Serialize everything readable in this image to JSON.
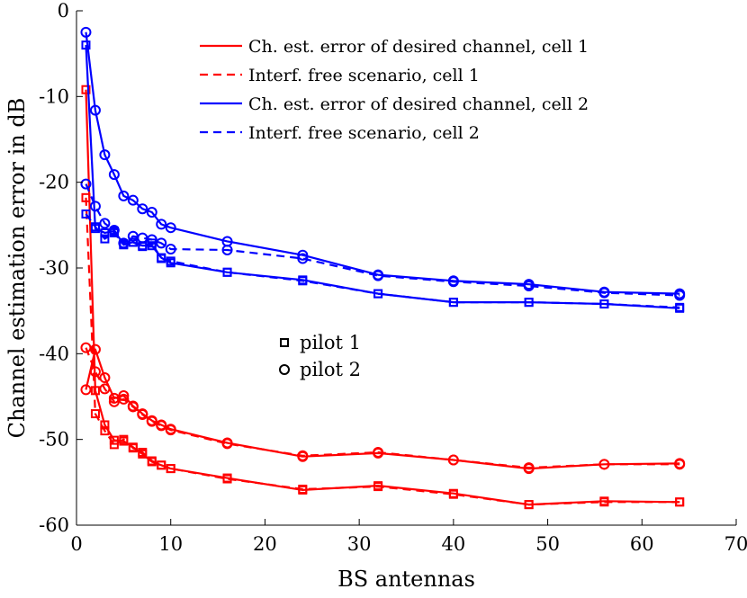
{
  "chart_data": {
    "type": "line",
    "xlabel": "BS antennas",
    "ylabel": "Channel estimation error in dB",
    "xlim": [
      0,
      70
    ],
    "ylim": [
      -60,
      0
    ],
    "xticks": [
      0,
      10,
      20,
      30,
      40,
      50,
      60,
      70
    ],
    "yticks": [
      0,
      -10,
      -20,
      -30,
      -40,
      -50,
      -60
    ],
    "xtick_labels": [
      "0",
      "10",
      "20",
      "30",
      "40",
      "50",
      "60",
      "70"
    ],
    "ytick_labels": [
      "0",
      "-10",
      "-20",
      "-30",
      "-40",
      "-50",
      "-60"
    ],
    "legend": {
      "position": "top-right",
      "entries": [
        {
          "label": "Ch. est. error of desired channel, cell 1",
          "color": "#ff0000",
          "style": "solid"
        },
        {
          "label": "Interf. free scenario, cell 1",
          "color": "#ff0000",
          "style": "dashed"
        },
        {
          "label": "Ch. est. error of desired channel, cell 2",
          "color": "#0000ff",
          "style": "solid"
        },
        {
          "label": "Interf. free scenario, cell 2",
          "color": "#0000ff",
          "style": "dashed"
        }
      ]
    },
    "marker_legend": [
      {
        "label": "pilot 1",
        "marker": "square"
      },
      {
        "label": "pilot 2",
        "marker": "circle"
      }
    ],
    "series": [
      {
        "name": "cell 1, pilot 1, desired",
        "color": "#ff0000",
        "style": "solid",
        "marker": "square",
        "x": [
          1,
          2,
          3,
          4,
          5,
          6,
          7,
          8,
          9,
          10,
          16,
          24,
          32,
          40,
          48,
          56,
          64
        ],
        "y": [
          -9.2,
          -44.3,
          -48.3,
          -50.1,
          -50.2,
          -50.9,
          -51.7,
          -52.6,
          -53.0,
          -53.4,
          -54.5,
          -55.9,
          -55.4,
          -56.3,
          -57.6,
          -57.2,
          -57.3
        ]
      },
      {
        "name": "cell 1, pilot 1, interf. free",
        "color": "#ff0000",
        "style": "dashed",
        "marker": "square",
        "x": [
          1,
          2,
          3,
          4,
          5,
          6,
          7,
          8,
          9,
          10,
          16,
          24,
          32,
          40,
          48,
          56,
          64
        ],
        "y": [
          -21.8,
          -47.0,
          -49.0,
          -50.6,
          -50.0,
          -51.0,
          -51.5,
          -52.5,
          -53.0,
          -53.4,
          -54.6,
          -55.8,
          -55.5,
          -56.4,
          -57.6,
          -57.3,
          -57.3
        ]
      },
      {
        "name": "cell 1, pilot 2, desired",
        "color": "#ff0000",
        "style": "solid",
        "marker": "circle",
        "x": [
          1,
          2,
          3,
          4,
          5,
          6,
          7,
          8,
          9,
          10,
          16,
          24,
          32,
          40,
          48,
          56,
          64
        ],
        "y": [
          -44.2,
          -39.5,
          -42.8,
          -45.2,
          -44.9,
          -46.1,
          -47.0,
          -47.8,
          -48.3,
          -48.8,
          -50.4,
          -52.0,
          -51.6,
          -52.4,
          -53.4,
          -52.9,
          -52.8
        ]
      },
      {
        "name": "cell 1, pilot 2, interf. free",
        "color": "#ff0000",
        "style": "dashed",
        "marker": "circle",
        "x": [
          1,
          2,
          3,
          4,
          5,
          6,
          7,
          8,
          9,
          10,
          16,
          24,
          32,
          40,
          48,
          56,
          64
        ],
        "y": [
          -39.3,
          -42.1,
          -44.1,
          -45.6,
          -45.3,
          -46.2,
          -47.1,
          -47.9,
          -48.4,
          -48.9,
          -50.5,
          -51.9,
          -51.5,
          -52.4,
          -53.3,
          -52.9,
          -52.9
        ]
      },
      {
        "name": "cell 2, pilot 1, desired",
        "color": "#0000ff",
        "style": "solid",
        "marker": "square",
        "x": [
          1,
          2,
          3,
          4,
          5,
          6,
          7,
          8,
          9,
          10,
          16,
          24,
          32,
          40,
          48,
          56,
          64
        ],
        "y": [
          -4.0,
          -25.4,
          -25.9,
          -25.7,
          -27.2,
          -27.0,
          -27.4,
          -27.4,
          -28.8,
          -29.4,
          -30.5,
          -31.4,
          -33.0,
          -34.0,
          -34.0,
          -34.2,
          -34.7
        ]
      },
      {
        "name": "cell 2, pilot 1, interf. free",
        "color": "#0000ff",
        "style": "dashed",
        "marker": "square",
        "x": [
          1,
          2,
          3,
          4,
          5,
          6,
          7,
          8,
          9,
          10,
          16,
          24,
          32,
          40,
          48,
          56,
          64
        ],
        "y": [
          -23.7,
          -25.2,
          -26.6,
          -25.9,
          -27.3,
          -27.0,
          -27.5,
          -27.1,
          -28.9,
          -29.2,
          -30.5,
          -31.5,
          -33.0,
          -34.0,
          -34.0,
          -34.2,
          -34.6
        ]
      },
      {
        "name": "cell 2, pilot 2, desired",
        "color": "#0000ff",
        "style": "solid",
        "marker": "circle",
        "x": [
          1,
          2,
          3,
          4,
          5,
          6,
          7,
          8,
          9,
          10,
          16,
          24,
          32,
          40,
          48,
          56,
          64
        ],
        "y": [
          -2.5,
          -11.6,
          -16.8,
          -19.1,
          -21.6,
          -22.1,
          -23.1,
          -23.5,
          -24.9,
          -25.3,
          -26.9,
          -28.5,
          -30.8,
          -31.5,
          -31.9,
          -32.8,
          -33.0
        ]
      },
      {
        "name": "cell 2, pilot 2, interf. free",
        "color": "#0000ff",
        "style": "dashed",
        "marker": "circle",
        "x": [
          1,
          2,
          3,
          4,
          5,
          6,
          7,
          8,
          9,
          10,
          16,
          24,
          32,
          40,
          48,
          56,
          64
        ],
        "y": [
          -20.2,
          -22.8,
          -24.8,
          -25.6,
          -27.1,
          -26.3,
          -26.5,
          -26.7,
          -27.1,
          -27.8,
          -27.9,
          -28.9,
          -30.9,
          -31.6,
          -32.1,
          -32.9,
          -33.2
        ]
      }
    ]
  }
}
